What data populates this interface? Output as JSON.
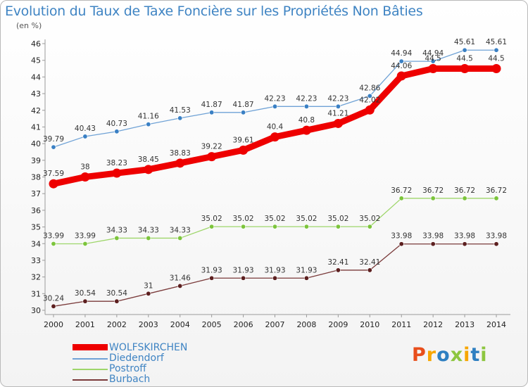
{
  "title": "Evolution du Taux de Taxe Foncière sur les Propriétés Non Bâties",
  "unit": "(en %)",
  "logo_text": "Proxiti",
  "logo_colors": [
    "#e84e1b",
    "#f7a600",
    "#2e7fc1",
    "#8dc63f",
    "#f7a600",
    "#2e7fc1",
    "#8dc63f"
  ],
  "chart_data": {
    "type": "line",
    "x": [
      "2000",
      "2001",
      "2002",
      "2003",
      "2004",
      "2005",
      "2006",
      "2007",
      "2008",
      "2009",
      "2010",
      "2011",
      "2012",
      "2013",
      "2014"
    ],
    "ylim": [
      30,
      46
    ],
    "yticks": [
      30,
      31,
      32,
      33,
      34,
      35,
      36,
      37,
      38,
      39,
      40,
      41,
      42,
      43,
      44,
      45,
      46
    ],
    "grid": false,
    "legend_position": "bottom-left",
    "series": [
      {
        "name": "Diedendorf",
        "color": "#6fa2d6",
        "marker": "#3a80c4",
        "values": [
          39.79,
          40.43,
          40.73,
          41.16,
          41.53,
          41.87,
          41.87,
          42.23,
          42.23,
          42.23,
          42.86,
          44.94,
          44.94,
          45.61,
          45.61
        ],
        "labels": [
          "39.79",
          "40.43",
          "40.73",
          "41.16",
          "41.53",
          "41.87",
          "41.87",
          "42.23",
          "42.23",
          "42.23",
          "42.86",
          "44.94",
          "44.94",
          "45.61",
          "45.61"
        ]
      },
      {
        "name": "Postroff",
        "color": "#9ed66a",
        "marker": "#7cc43c",
        "values": [
          33.99,
          33.99,
          34.33,
          34.33,
          34.33,
          35.02,
          35.02,
          35.02,
          35.02,
          35.02,
          35.02,
          36.72,
          36.72,
          36.72,
          36.72
        ],
        "labels": [
          "33.99",
          "33.99",
          "34.33",
          "34.33",
          "34.33",
          "35.02",
          "35.02",
          "35.02",
          "35.02",
          "35.02",
          "35.02",
          "36.72",
          "36.72",
          "36.72",
          "36.72"
        ]
      },
      {
        "name": "Burbach",
        "color": "#7a3a3a",
        "marker": "#5c1f1f",
        "values": [
          30.24,
          30.54,
          30.54,
          31,
          31.46,
          31.93,
          31.93,
          31.93,
          31.93,
          32.41,
          32.41,
          33.98,
          33.98,
          33.98,
          33.98
        ],
        "labels": [
          "30.24",
          "30.54",
          "30.54",
          "31",
          "31.46",
          "31.93",
          "31.93",
          "31.93",
          "31.93",
          "32.41",
          "32.41",
          "33.98",
          "33.98",
          "33.98",
          "33.98"
        ]
      },
      {
        "name": "WOLFSKIRCHEN",
        "color": "#ee0000",
        "marker": "#ee0000",
        "values": [
          37.59,
          38,
          38.23,
          38.45,
          38.83,
          39.22,
          39.61,
          40.4,
          40.8,
          41.21,
          42.02,
          44.06,
          44.5,
          44.5,
          44.5
        ],
        "labels": [
          "37.59",
          "38",
          "38.23",
          "38.45",
          "38.83",
          "39.22",
          "39.61",
          "40.4",
          "40.8",
          "41.21",
          "42.02",
          "44.06",
          "44.5",
          "44.5",
          "44.5"
        ]
      }
    ]
  }
}
